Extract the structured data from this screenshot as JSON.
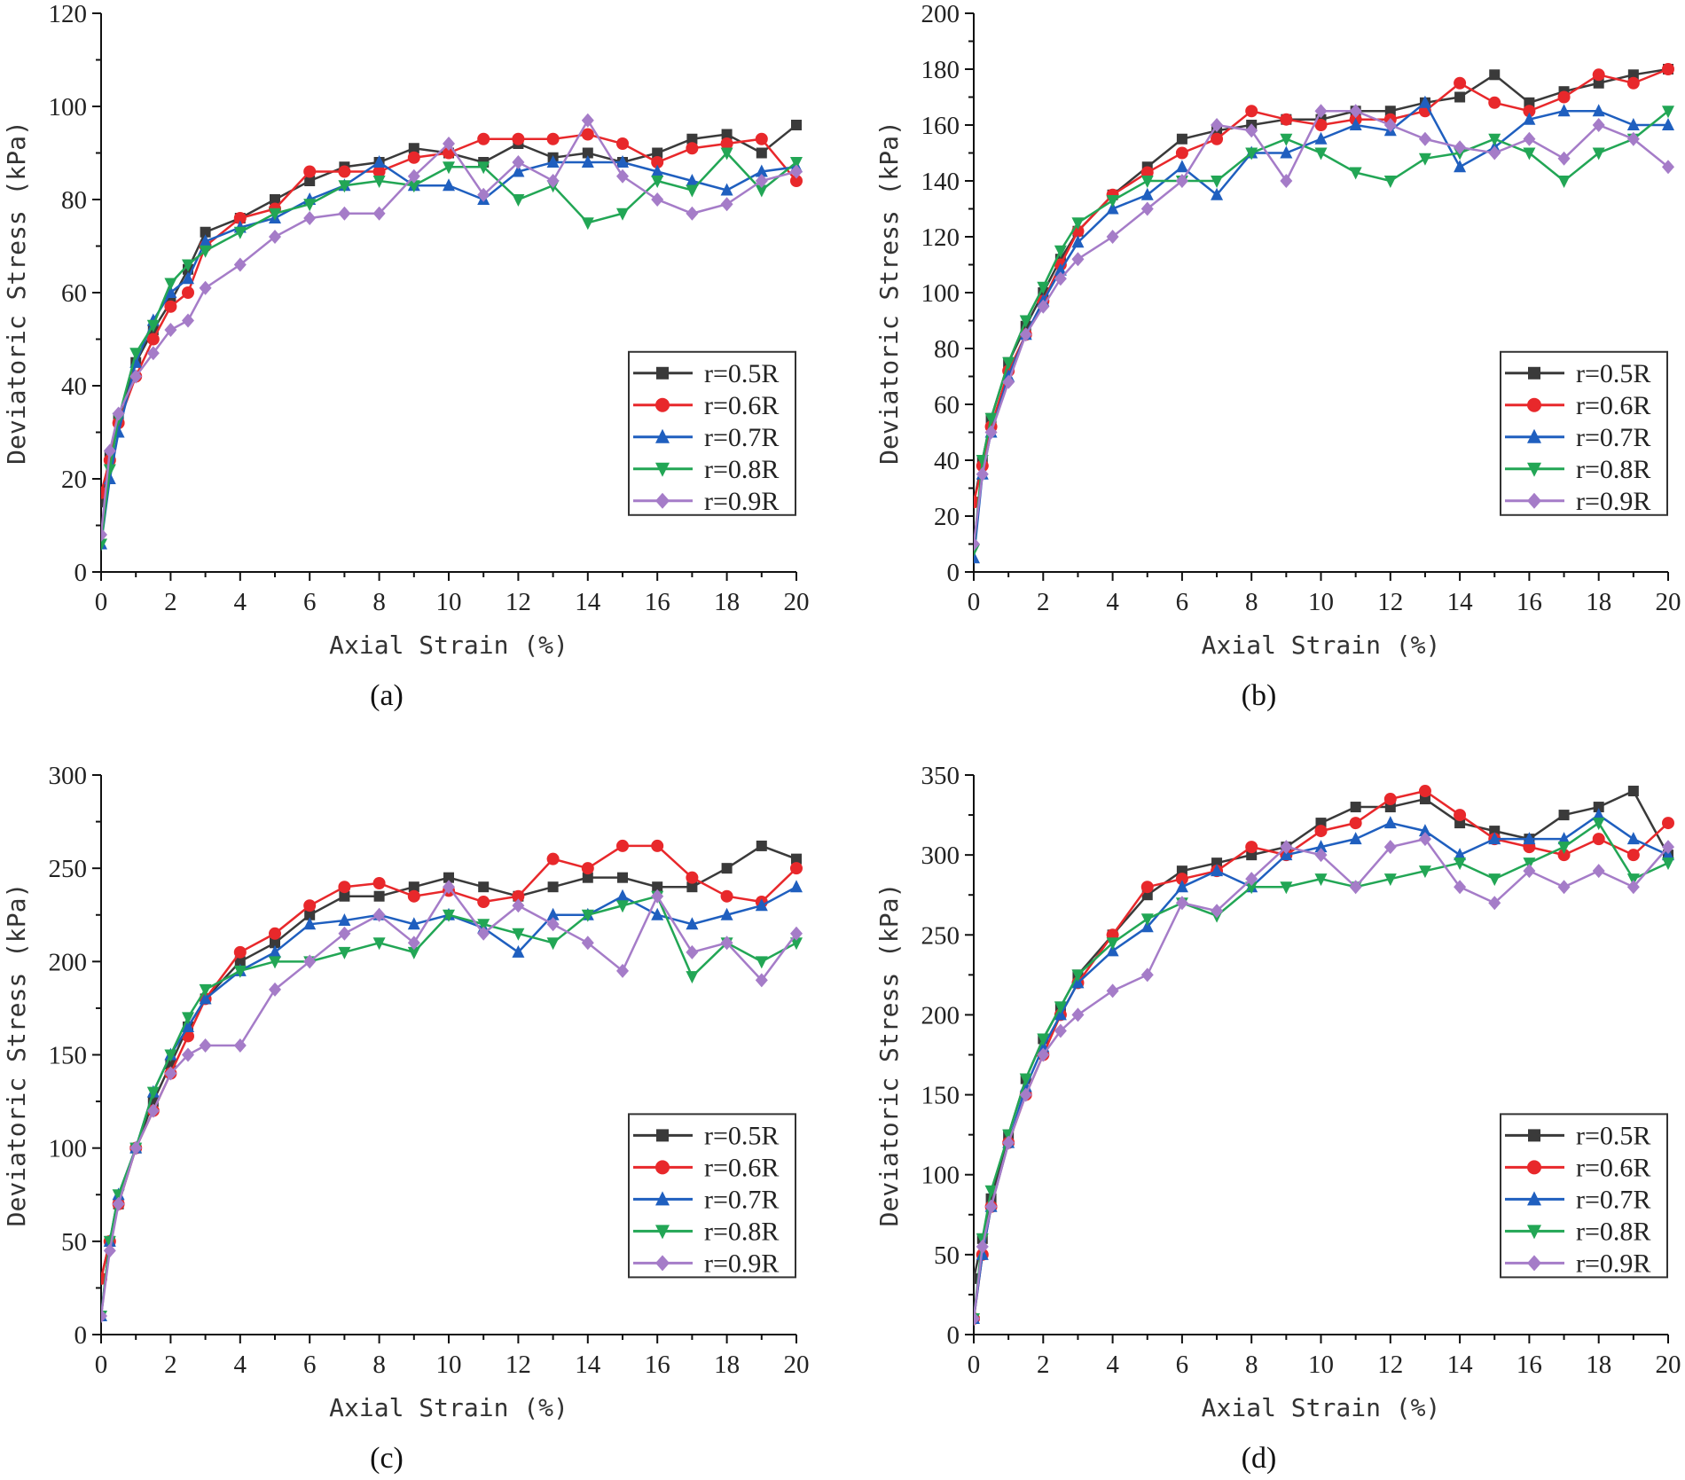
{
  "chart_data": [
    {
      "type": "line",
      "panel_label": "(a)",
      "xlabel": "Axial Strain (%)",
      "ylabel": "Deviatoric Stress (kPa)",
      "xlim": [
        0,
        20
      ],
      "ylim": [
        0,
        120
      ],
      "xticks": [
        0,
        2,
        4,
        6,
        8,
        10,
        12,
        14,
        16,
        18,
        20
      ],
      "yticks": [
        0,
        20,
        40,
        60,
        80,
        100,
        120
      ],
      "grid": false,
      "legend": "right",
      "x": [
        0,
        0.25,
        0.5,
        1,
        1.5,
        2,
        2.5,
        3,
        4,
        5,
        6,
        7,
        8,
        9,
        10,
        11,
        12,
        13,
        14,
        15,
        16,
        17,
        18,
        19,
        20
      ],
      "series": [
        {
          "name": "r=0.5R",
          "color": "#3a3a3a",
          "marker": "square",
          "values": [
            15,
            25,
            33,
            45,
            52,
            58,
            65,
            73,
            76,
            80,
            84,
            87,
            88,
            91,
            90,
            88,
            92,
            89,
            90,
            88,
            90,
            93,
            94,
            90,
            96
          ]
        },
        {
          "name": "r=0.6R",
          "color": "#e8282b",
          "marker": "circle",
          "values": [
            17,
            24,
            32,
            42,
            50,
            57,
            60,
            70,
            76,
            78,
            86,
            86,
            86,
            89,
            90,
            93,
            93,
            93,
            94,
            92,
            88,
            91,
            92,
            93,
            84
          ]
        },
        {
          "name": "r=0.7R",
          "color": "#1f5fbf",
          "marker": "triangle-up",
          "values": [
            6,
            20,
            30,
            45,
            54,
            60,
            63,
            71,
            74,
            76,
            80,
            83,
            88,
            83,
            83,
            80,
            86,
            88,
            88,
            88,
            86,
            84,
            82,
            86,
            87
          ]
        },
        {
          "name": "r=0.8R",
          "color": "#22a655",
          "marker": "triangle-down",
          "values": [
            6,
            22,
            33,
            47,
            53,
            62,
            66,
            69,
            73,
            77,
            79,
            83,
            84,
            83,
            87,
            87,
            80,
            83,
            75,
            77,
            84,
            82,
            90,
            82,
            88
          ]
        },
        {
          "name": "r=0.9R",
          "color": "#a57cc8",
          "marker": "diamond",
          "values": [
            8,
            26,
            34,
            42,
            47,
            52,
            54,
            61,
            66,
            72,
            76,
            77,
            77,
            85,
            92,
            81,
            88,
            84,
            97,
            85,
            80,
            77,
            79,
            84,
            86
          ]
        }
      ]
    },
    {
      "type": "line",
      "panel_label": "(b)",
      "xlabel": "Axial Strain (%)",
      "ylabel": "Deviatoric Stress (kPa)",
      "xlim": [
        0,
        20
      ],
      "ylim": [
        0,
        200
      ],
      "xticks": [
        0,
        2,
        4,
        6,
        8,
        10,
        12,
        14,
        16,
        18,
        20
      ],
      "yticks": [
        0,
        20,
        40,
        60,
        80,
        100,
        120,
        140,
        160,
        180,
        200
      ],
      "grid": false,
      "legend": "right",
      "x": [
        0,
        0.25,
        0.5,
        1,
        1.5,
        2,
        2.5,
        3,
        4,
        5,
        6,
        7,
        8,
        9,
        10,
        11,
        12,
        13,
        14,
        15,
        16,
        17,
        18,
        19,
        20
      ],
      "series": [
        {
          "name": "r=0.5R",
          "color": "#3a3a3a",
          "marker": "square",
          "values": [
            25,
            40,
            55,
            75,
            88,
            100,
            112,
            122,
            135,
            145,
            155,
            158,
            160,
            162,
            162,
            165,
            165,
            168,
            170,
            178,
            168,
            172,
            175,
            178,
            180
          ]
        },
        {
          "name": "r=0.6R",
          "color": "#e8282b",
          "marker": "circle",
          "values": [
            25,
            38,
            52,
            72,
            85,
            97,
            110,
            122,
            135,
            143,
            150,
            155,
            165,
            162,
            160,
            162,
            162,
            165,
            175,
            168,
            165,
            170,
            178,
            175,
            180
          ]
        },
        {
          "name": "r=0.7R",
          "color": "#1f5fbf",
          "marker": "triangle-up",
          "values": [
            5,
            35,
            50,
            70,
            85,
            97,
            108,
            118,
            130,
            135,
            145,
            135,
            150,
            150,
            155,
            160,
            158,
            168,
            145,
            152,
            162,
            165,
            165,
            160,
            160
          ]
        },
        {
          "name": "r=0.8R",
          "color": "#22a655",
          "marker": "triangle-down",
          "values": [
            8,
            40,
            55,
            75,
            90,
            102,
            115,
            125,
            133,
            140,
            140,
            140,
            150,
            155,
            150,
            143,
            140,
            148,
            150,
            155,
            150,
            140,
            150,
            155,
            165
          ]
        },
        {
          "name": "r=0.9R",
          "color": "#a57cc8",
          "marker": "diamond",
          "values": [
            10,
            35,
            50,
            68,
            85,
            95,
            105,
            112,
            120,
            130,
            140,
            160,
            158,
            140,
            165,
            165,
            160,
            155,
            152,
            150,
            155,
            148,
            160,
            155,
            145
          ]
        }
      ]
    },
    {
      "type": "line",
      "panel_label": "(c)",
      "xlabel": "Axial Strain (%)",
      "ylabel": "Deviatoric Stress (kPa)",
      "xlim": [
        0,
        20
      ],
      "ylim": [
        0,
        300
      ],
      "xticks": [
        0,
        2,
        4,
        6,
        8,
        10,
        12,
        14,
        16,
        18,
        20
      ],
      "yticks": [
        0,
        50,
        100,
        150,
        200,
        250,
        300
      ],
      "grid": false,
      "legend": "bottom-right",
      "x": [
        0,
        0.25,
        0.5,
        1,
        1.5,
        2,
        2.5,
        3,
        4,
        5,
        6,
        7,
        8,
        9,
        10,
        11,
        12,
        13,
        14,
        15,
        16,
        17,
        18,
        19,
        20
      ],
      "series": [
        {
          "name": "r=0.5R",
          "color": "#3a3a3a",
          "marker": "square",
          "values": [
            30,
            50,
            70,
            100,
            125,
            145,
            165,
            180,
            200,
            210,
            225,
            235,
            235,
            240,
            245,
            240,
            235,
            240,
            245,
            245,
            240,
            240,
            250,
            262,
            255
          ]
        },
        {
          "name": "r=0.6R",
          "color": "#e8282b",
          "marker": "circle",
          "values": [
            30,
            50,
            70,
            100,
            120,
            140,
            160,
            180,
            205,
            215,
            230,
            240,
            242,
            235,
            238,
            232,
            235,
            255,
            250,
            262,
            262,
            245,
            235,
            232,
            250
          ]
        },
        {
          "name": "r=0.7R",
          "color": "#1f5fbf",
          "marker": "triangle-up",
          "values": [
            10,
            50,
            75,
            100,
            130,
            150,
            165,
            180,
            195,
            205,
            220,
            222,
            225,
            220,
            225,
            218,
            205,
            225,
            225,
            235,
            225,
            220,
            225,
            230,
            240
          ]
        },
        {
          "name": "r=0.8R",
          "color": "#22a655",
          "marker": "triangle-down",
          "values": [
            10,
            50,
            75,
            100,
            130,
            150,
            170,
            185,
            195,
            200,
            200,
            205,
            210,
            205,
            225,
            220,
            215,
            210,
            225,
            230,
            235,
            192,
            210,
            200,
            210
          ]
        },
        {
          "name": "r=0.9R",
          "color": "#a57cc8",
          "marker": "diamond",
          "values": [
            10,
            45,
            70,
            100,
            120,
            140,
            150,
            155,
            155,
            185,
            200,
            215,
            225,
            210,
            240,
            215,
            230,
            220,
            210,
            195,
            235,
            205,
            210,
            190,
            215
          ]
        }
      ]
    },
    {
      "type": "line",
      "panel_label": "(d)",
      "xlabel": "Axial Strain (%)",
      "ylabel": "Deviatoric Stress (kPa)",
      "xlim": [
        0,
        20
      ],
      "ylim": [
        0,
        350
      ],
      "xticks": [
        0,
        2,
        4,
        6,
        8,
        10,
        12,
        14,
        16,
        18,
        20
      ],
      "yticks": [
        0,
        50,
        100,
        150,
        200,
        250,
        300,
        350
      ],
      "grid": false,
      "legend": "bottom-right",
      "x": [
        0,
        0.25,
        0.5,
        1,
        1.5,
        2,
        2.5,
        3,
        4,
        5,
        6,
        7,
        8,
        9,
        10,
        11,
        12,
        13,
        14,
        15,
        16,
        17,
        18,
        19,
        20
      ],
      "series": [
        {
          "name": "r=0.5R",
          "color": "#3a3a3a",
          "marker": "square",
          "values": [
            35,
            60,
            85,
            125,
            160,
            185,
            205,
            225,
            250,
            275,
            290,
            295,
            300,
            305,
            320,
            330,
            330,
            335,
            320,
            315,
            310,
            325,
            330,
            340,
            300
          ]
        },
        {
          "name": "r=0.6R",
          "color": "#e8282b",
          "marker": "circle",
          "values": [
            10,
            50,
            80,
            120,
            150,
            175,
            200,
            220,
            250,
            280,
            285,
            290,
            305,
            300,
            315,
            320,
            335,
            340,
            325,
            310,
            305,
            300,
            310,
            300,
            320
          ]
        },
        {
          "name": "r=0.7R",
          "color": "#1f5fbf",
          "marker": "triangle-up",
          "values": [
            10,
            50,
            80,
            120,
            155,
            180,
            200,
            220,
            240,
            255,
            280,
            290,
            280,
            300,
            305,
            310,
            320,
            315,
            300,
            310,
            310,
            310,
            325,
            310,
            300
          ]
        },
        {
          "name": "r=0.8R",
          "color": "#22a655",
          "marker": "triangle-down",
          "values": [
            10,
            60,
            90,
            125,
            160,
            185,
            205,
            225,
            245,
            260,
            270,
            262,
            280,
            280,
            285,
            280,
            285,
            290,
            295,
            285,
            295,
            305,
            320,
            285,
            295
          ]
        },
        {
          "name": "r=0.9R",
          "color": "#a57cc8",
          "marker": "diamond",
          "values": [
            10,
            55,
            80,
            120,
            150,
            175,
            190,
            200,
            215,
            225,
            270,
            265,
            285,
            305,
            300,
            280,
            305,
            310,
            280,
            270,
            290,
            280,
            290,
            280,
            305
          ]
        }
      ]
    }
  ]
}
